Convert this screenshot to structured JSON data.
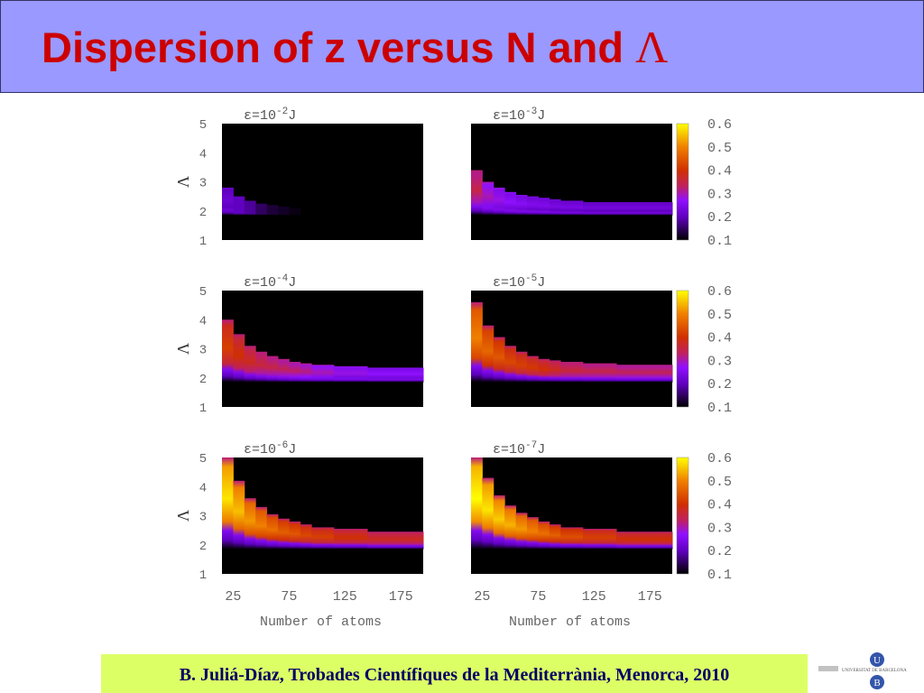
{
  "header": {
    "title": "Dispersion of z versus N and",
    "title_symbol": "Λ"
  },
  "footer": {
    "text": "B. Juliá-Díaz, Trobades Científiques de la Mediterrània, Menorca, 2010"
  },
  "logo": {
    "text": "UNIVERSITAT DE BARCELONA",
    "letters": [
      "U",
      "B"
    ]
  },
  "colors": {
    "header_bg": "#9999ff",
    "title": "#cc0000",
    "footer_bg": "#ddff66",
    "footer_text": "#000066"
  },
  "chart_data": [
    {
      "type": "heatmap",
      "label_base": "ε=10",
      "label_exp": "-2",
      "label_unit": "J",
      "ylabel": "Λ",
      "xlabel": "",
      "xlim": [
        15,
        195
      ],
      "ylim": [
        1,
        5
      ],
      "yticks": [
        "1",
        "2",
        "3",
        "4",
        "5"
      ],
      "xticks": [],
      "bin_edges": [
        15,
        25,
        35,
        45,
        55,
        65,
        75,
        85,
        95,
        115,
        145,
        195
      ],
      "lambda_top": [
        2.8,
        2.5,
        2.35,
        2.25,
        2.2,
        2.15,
        2.1,
        2.05,
        2.0,
        2.0,
        2.0
      ],
      "peak_value": [
        0.22,
        0.2,
        0.18,
        0.15,
        0.13,
        0.12,
        0.11,
        0.1,
        0.1,
        0.1,
        0.1
      ]
    },
    {
      "type": "heatmap",
      "label_base": "ε=10",
      "label_exp": "-3",
      "label_unit": "J",
      "ylabel": "",
      "xlabel": "",
      "xlim": [
        15,
        195
      ],
      "ylim": [
        1,
        5
      ],
      "xticks": [],
      "colorbar": {
        "range": [
          0.1,
          0.6
        ],
        "ticks": [
          "0.6",
          "0.5",
          "0.4",
          "0.3",
          "0.2",
          "0.1"
        ]
      },
      "bin_edges": [
        15,
        25,
        35,
        45,
        55,
        65,
        75,
        85,
        95,
        115,
        145,
        195
      ],
      "lambda_top": [
        3.4,
        3.0,
        2.8,
        2.65,
        2.55,
        2.5,
        2.45,
        2.4,
        2.35,
        2.3,
        2.3
      ],
      "peak_value": [
        0.35,
        0.3,
        0.28,
        0.27,
        0.26,
        0.25,
        0.25,
        0.24,
        0.24,
        0.23,
        0.23
      ]
    },
    {
      "type": "heatmap",
      "label_base": "ε=10",
      "label_exp": "-4",
      "label_unit": "J",
      "ylabel": "Λ",
      "xlabel": "",
      "xlim": [
        15,
        195
      ],
      "ylim": [
        1,
        5
      ],
      "yticks": [
        "1",
        "2",
        "3",
        "4",
        "5"
      ],
      "xticks": [],
      "bin_edges": [
        15,
        25,
        35,
        45,
        55,
        65,
        75,
        85,
        95,
        115,
        145,
        195
      ],
      "lambda_top": [
        4.0,
        3.5,
        3.1,
        2.9,
        2.75,
        2.65,
        2.55,
        2.5,
        2.45,
        2.4,
        2.35
      ],
      "peak_value": [
        0.42,
        0.4,
        0.38,
        0.36,
        0.35,
        0.34,
        0.33,
        0.32,
        0.3,
        0.28,
        0.27
      ]
    },
    {
      "type": "heatmap",
      "label_base": "ε=10",
      "label_exp": "-5",
      "label_unit": "J",
      "ylabel": "",
      "xlabel": "",
      "xlim": [
        15,
        195
      ],
      "ylim": [
        1,
        5
      ],
      "xticks": [],
      "colorbar": {
        "range": [
          0.1,
          0.6
        ],
        "ticks": [
          "0.6",
          "0.5",
          "0.4",
          "0.3",
          "0.2",
          "0.1"
        ]
      },
      "bin_edges": [
        15,
        25,
        35,
        45,
        55,
        65,
        75,
        85,
        95,
        115,
        145,
        195
      ],
      "lambda_top": [
        4.6,
        3.8,
        3.4,
        3.1,
        2.9,
        2.75,
        2.65,
        2.6,
        2.55,
        2.5,
        2.45
      ],
      "peak_value": [
        0.5,
        0.47,
        0.45,
        0.43,
        0.42,
        0.41,
        0.4,
        0.38,
        0.36,
        0.35,
        0.34
      ]
    },
    {
      "type": "heatmap",
      "label_base": "ε=10",
      "label_exp": "-6",
      "label_unit": "J",
      "ylabel": "Λ",
      "xlabel": "Number of atoms",
      "xlim": [
        15,
        195
      ],
      "ylim": [
        1,
        5
      ],
      "yticks": [
        "1",
        "2",
        "3",
        "4",
        "5"
      ],
      "xticks": [
        "25",
        "75",
        "125",
        "175"
      ],
      "bin_edges": [
        15,
        25,
        35,
        45,
        55,
        65,
        75,
        85,
        95,
        115,
        145,
        195
      ],
      "lambda_top": [
        5.0,
        4.2,
        3.6,
        3.3,
        3.05,
        2.9,
        2.8,
        2.7,
        2.6,
        2.55,
        2.45
      ],
      "peak_value": [
        0.58,
        0.55,
        0.52,
        0.5,
        0.48,
        0.46,
        0.45,
        0.43,
        0.42,
        0.4,
        0.38
      ]
    },
    {
      "type": "heatmap",
      "label_base": "ε=10",
      "label_exp": "-7",
      "label_unit": "J",
      "ylabel": "",
      "xlabel": "Number of atoms",
      "xlim": [
        15,
        195
      ],
      "ylim": [
        1,
        5
      ],
      "xticks": [
        "25",
        "75",
        "125",
        "175"
      ],
      "colorbar": {
        "range": [
          0.1,
          0.6
        ],
        "ticks": [
          "0.6",
          "0.5",
          "0.4",
          "0.3",
          "0.2",
          "0.1"
        ]
      },
      "bin_edges": [
        15,
        25,
        35,
        45,
        55,
        65,
        75,
        85,
        95,
        115,
        145,
        195
      ],
      "lambda_top": [
        5.0,
        4.3,
        3.7,
        3.35,
        3.1,
        2.95,
        2.8,
        2.7,
        2.6,
        2.55,
        2.45
      ],
      "peak_value": [
        0.6,
        0.58,
        0.56,
        0.54,
        0.52,
        0.5,
        0.48,
        0.46,
        0.44,
        0.42,
        0.4
      ]
    }
  ]
}
